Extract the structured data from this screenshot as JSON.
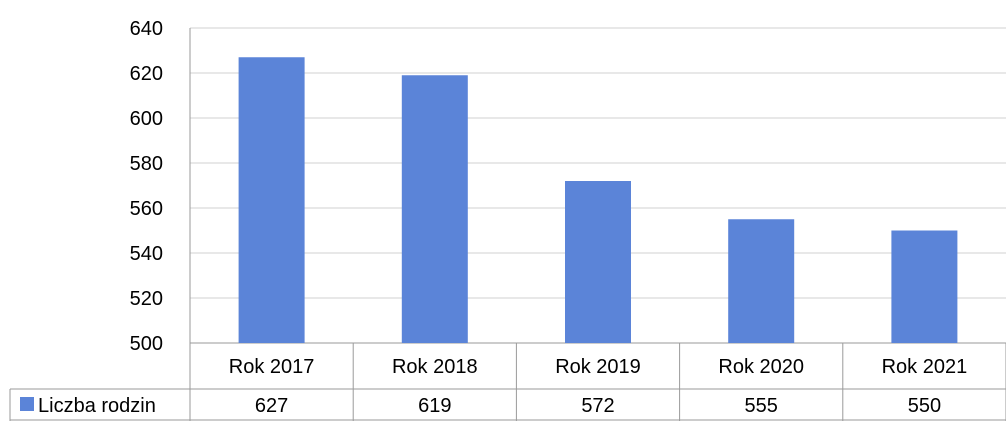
{
  "chart_data": {
    "type": "bar",
    "categories": [
      "Rok 2017",
      "Rok 2018",
      "Rok 2019",
      "Rok 2020",
      "Rok 2021"
    ],
    "series": [
      {
        "name": "Liczba rodzin",
        "values": [
          627,
          619,
          572,
          555,
          550
        ],
        "color": "#5B84D8"
      }
    ],
    "ylim": [
      500,
      640
    ],
    "yticks": [
      500,
      520,
      540,
      560,
      580,
      600,
      620,
      640
    ],
    "grid": true,
    "legend": "data-table-left"
  }
}
